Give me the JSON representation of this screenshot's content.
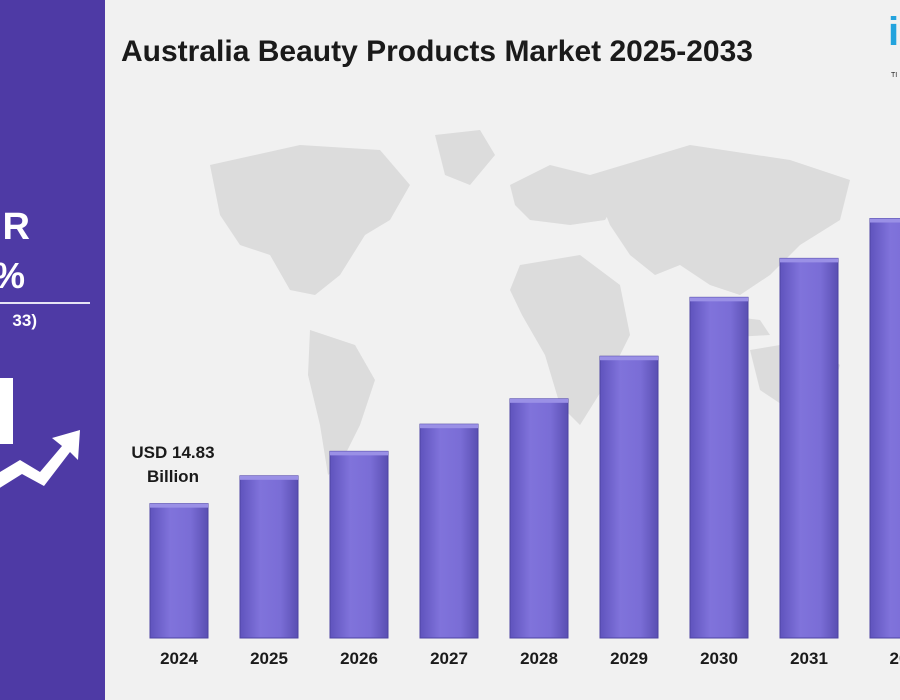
{
  "header": {
    "title": "Australia Beauty Products Market 2025-2033"
  },
  "sidebar": {
    "cagr_line": "R",
    "cagr_value": "%",
    "period": "33)"
  },
  "callout": {
    "line1": "USD 14.83",
    "line2": "Billion"
  },
  "logo": {
    "letter": "i",
    "tagline": "TI"
  },
  "colors": {
    "panel": "#4e3aa5",
    "bar": "#7b6fd6",
    "bar_edge": "#5d52b8",
    "logo": "#23a3dd"
  },
  "chart_data": {
    "type": "bar",
    "title": "Australia Beauty Products Market 2025-2033",
    "categories": [
      "2024",
      "2025",
      "2026",
      "2027",
      "2028",
      "2029",
      "2030",
      "2031",
      "20"
    ],
    "values": [
      14.83,
      17.9,
      20.6,
      23.6,
      26.4,
      31.1,
      37.6,
      41.9,
      46.3
    ],
    "value_unit": "USD Billion",
    "annotations": [
      {
        "category": "2024",
        "text": "USD 14.83 Billion"
      }
    ],
    "xlabel": "",
    "ylabel": "",
    "ylim": [
      0,
      50
    ],
    "grid": false,
    "legend": "none"
  }
}
